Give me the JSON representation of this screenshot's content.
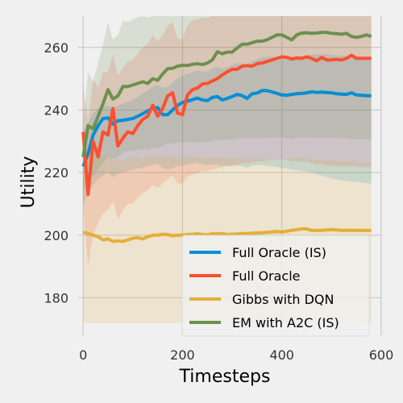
{
  "chart_data": {
    "type": "line",
    "title": "",
    "xlabel": "Timesteps",
    "ylabel": "Utility",
    "xlim": [
      -10,
      600
    ],
    "ylim": [
      168,
      270
    ],
    "xticks": [
      0,
      200,
      400,
      600
    ],
    "yticks": [
      180,
      200,
      220,
      240,
      260
    ],
    "grid": true,
    "legend_position": "lower-right",
    "x": [
      0,
      10,
      20,
      30,
      40,
      50,
      60,
      70,
      80,
      90,
      100,
      110,
      120,
      130,
      140,
      150,
      160,
      170,
      180,
      190,
      200,
      210,
      220,
      230,
      240,
      250,
      260,
      270,
      280,
      290,
      300,
      310,
      320,
      330,
      340,
      350,
      360,
      370,
      380,
      390,
      400,
      410,
      420,
      430,
      440,
      450,
      460,
      470,
      480,
      490,
      500,
      510,
      520,
      530,
      540,
      550,
      560,
      570,
      580
    ],
    "series": [
      {
        "name": "Full Oracle (IS)",
        "color": "#008fd5",
        "values": [
          222,
          226,
          232,
          235,
          237.3,
          237.5,
          235.5,
          236.6,
          236.7,
          237,
          237.3,
          238,
          238.8,
          239.7,
          240.5,
          240.8,
          238.5,
          238.5,
          240,
          241.5,
          242.4,
          242.8,
          243.3,
          243.8,
          243.2,
          243,
          244,
          244.3,
          243.2,
          243.7,
          244.3,
          245,
          244.6,
          243.7,
          245.2,
          245.4,
          246.2,
          246.2,
          245.8,
          245.3,
          244.8,
          244.7,
          245,
          245.2,
          245.3,
          245.5,
          245.8,
          245.6,
          245.7,
          245.6,
          245.5,
          245.2,
          245.1,
          245,
          245.5,
          244.8,
          244.7,
          244.6,
          244.5
        ],
        "lower": [
          210,
          213,
          216,
          218,
          219,
          220,
          218.5,
          219.5,
          220,
          220.5,
          221,
          221.3,
          221.5,
          222,
          222.5,
          222.8,
          221.5,
          221,
          221.5,
          222,
          222.2,
          222.5,
          222.8,
          223,
          222.6,
          222.3,
          222.5,
          222.6,
          222,
          222.2,
          222,
          222.3,
          222.1,
          221.6,
          222.3,
          222.4,
          222.4,
          222.2,
          222,
          221.8,
          221.5,
          221.3,
          221,
          220.8,
          220.5,
          220.3,
          220,
          219.5,
          219,
          218.6,
          218.2,
          217.8,
          217.5,
          217.3,
          217.2,
          217,
          216.8,
          216.6,
          216.5
        ],
        "upper": [
          233,
          236,
          239,
          240.5,
          241.3,
          241.5,
          240.6,
          241.4,
          242,
          242.6,
          243.3,
          244.2,
          245.2,
          246.3,
          247.4,
          248,
          247.1,
          247.3,
          248.7,
          250.1,
          251,
          251.5,
          252.1,
          252.6,
          252.3,
          252.3,
          253.3,
          253.8,
          253.2,
          253.7,
          254.3,
          255,
          254.9,
          254.4,
          255.7,
          256.1,
          256.9,
          257.1,
          257,
          256.8,
          256.5,
          256.5,
          256.8,
          257,
          257.2,
          257.5,
          257.8,
          257.7,
          257.8,
          257.8,
          257.7,
          257.5,
          257.4,
          257.3,
          257.6,
          257.2,
          257.1,
          257,
          256.9
        ]
      },
      {
        "name": "Full Oracle",
        "color": "#fc4f30",
        "values": [
          233,
          213,
          230,
          225,
          233,
          232,
          240.5,
          228.5,
          231,
          233,
          232.5,
          235,
          237,
          238,
          241.5,
          238,
          240.5,
          244.5,
          245.5,
          239,
          238.5,
          244.8,
          246.5,
          247,
          248.3,
          248.5,
          249.3,
          250,
          251.2,
          252.2,
          253,
          253,
          254,
          254.2,
          254,
          254.8,
          255,
          255.5,
          256,
          256.5,
          257,
          256.8,
          256.3,
          256.6,
          256.5,
          257,
          256.5,
          255.7,
          256.8,
          256,
          256,
          256.2,
          256,
          256.5,
          257.5,
          256.5,
          256.5,
          256.5,
          256.5
        ],
        "lower": [
          210,
          190,
          200,
          204,
          207,
          208,
          211,
          205,
          208,
          210,
          210,
          212,
          213.5,
          214.5,
          216,
          215,
          216.5,
          218,
          219,
          216.5,
          216.5,
          218.7,
          219.5,
          219.8,
          220.4,
          220.5,
          221,
          221.3,
          221.8,
          222.2,
          222.5,
          222.5,
          223,
          223.1,
          223.2,
          223.5,
          223.7,
          224,
          224.1,
          224.2,
          224.2,
          224,
          223.6,
          223.6,
          223.4,
          223.5,
          223,
          222.4,
          222.8,
          222.3,
          222.2,
          222.2,
          222,
          222,
          222.3,
          222,
          221.8,
          221.8,
          221.8
        ],
        "upper": [
          248,
          236,
          250,
          247,
          252,
          252,
          258,
          251,
          253.5,
          255.5,
          256,
          258,
          260,
          261,
          264,
          262,
          264,
          267,
          268,
          263,
          262.5,
          267,
          268.5,
          269,
          269.5,
          269.5,
          270,
          270,
          270,
          270,
          270,
          270,
          270,
          270,
          270,
          270,
          270,
          270,
          270,
          270,
          270,
          270,
          270,
          270,
          270,
          270,
          270,
          270,
          270,
          270,
          270,
          270,
          270,
          270,
          270,
          270,
          270,
          270,
          270
        ]
      },
      {
        "name": "Gibbs with DQN",
        "color": "#e5ae38",
        "values": [
          201,
          200.5,
          200,
          199.5,
          198.5,
          198.8,
          198,
          198.2,
          198,
          198.5,
          199,
          199.2,
          198.8,
          199.5,
          200,
          200,
          200.3,
          200.2,
          199.8,
          200,
          200,
          200.2,
          200.3,
          200.5,
          200.2,
          200.1,
          200.5,
          200.4,
          200.5,
          200.2,
          200.3,
          200.4,
          200.5,
          200.5,
          200.6,
          200.7,
          200.8,
          200.9,
          201,
          201.2,
          201,
          201.3,
          201.5,
          201.8,
          202,
          202,
          201.5,
          201.5,
          201.5,
          201.7,
          201.8,
          201.7,
          201.5,
          201.5,
          201.6,
          201.5,
          201.5,
          201.5,
          201.5
        ],
        "lower": [
          172,
          172,
          172,
          172,
          172,
          172,
          172,
          172,
          172,
          172,
          172,
          172,
          172,
          172,
          172,
          172,
          172,
          172,
          172,
          172,
          172,
          172,
          172,
          172,
          172,
          172,
          172,
          172,
          172,
          172,
          172,
          172,
          172,
          172,
          172,
          172,
          172,
          172,
          172,
          172,
          172,
          172,
          172,
          172,
          172,
          172,
          172,
          172,
          172,
          172,
          172,
          172,
          172,
          172,
          172,
          172,
          172,
          172,
          172
        ],
        "upper": [
          229,
          229,
          228,
          227,
          225,
          225.5,
          224.5,
          224.5,
          224,
          224.5,
          225,
          225,
          224.5,
          225,
          225.3,
          225.2,
          225.4,
          225.3,
          224.8,
          225,
          224.8,
          225,
          225,
          225.2,
          224.8,
          224.6,
          225,
          224.8,
          224.8,
          224.5,
          224.5,
          224.5,
          224.5,
          224.3,
          224.4,
          224.4,
          224.4,
          224.4,
          224.4,
          224.5,
          224.2,
          224.4,
          224.5,
          224.7,
          224.8,
          224.7,
          224.1,
          224,
          223.9,
          224,
          224,
          223.8,
          223.6,
          223.5,
          223.5,
          223.3,
          223.2,
          223.1,
          223
        ]
      },
      {
        "name": "EM with A2C (IS)",
        "color": "#6d904f",
        "values": [
          225,
          235,
          234,
          238,
          242,
          246.5,
          243.5,
          244.5,
          247.5,
          247.5,
          248,
          248.5,
          249,
          248.5,
          250,
          249.5,
          251.5,
          253.2,
          253.3,
          254,
          254.3,
          254.2,
          254.6,
          254.8,
          254.5,
          255,
          256,
          258.6,
          258,
          258.5,
          258.5,
          259.8,
          261,
          261,
          261.5,
          262,
          262,
          262.4,
          263.2,
          264,
          264,
          263.2,
          262.4,
          264,
          264.6,
          264.7,
          264.5,
          264.6,
          264.8,
          264.8,
          264.5,
          264.4,
          264.2,
          264.5,
          263.5,
          263.2,
          263.5,
          264,
          263.5
        ],
        "lower": [
          214,
          218,
          219,
          221,
          223,
          225,
          224.5,
          225,
          226.5,
          226.8,
          227,
          227.3,
          227.6,
          227.4,
          228,
          227.8,
          228.6,
          229.3,
          229.3,
          229.6,
          229.7,
          229.6,
          229.7,
          229.8,
          229.6,
          229.8,
          230,
          230.7,
          230.4,
          230.5,
          230.5,
          230.8,
          231,
          230.9,
          230.9,
          231,
          230.9,
          231,
          231.2,
          231.3,
          231.3,
          231,
          230.8,
          231.2,
          231.3,
          231.3,
          231.2,
          231.2,
          231.2,
          231.2,
          231.1,
          231,
          230.9,
          231,
          230.7,
          230.6,
          230.6,
          230.7,
          230.6
        ],
        "upper": [
          236,
          252,
          249,
          255,
          261,
          268,
          262.5,
          264,
          268.5,
          268.2,
          269,
          269.7,
          270,
          269.6,
          270,
          270,
          270,
          270,
          270,
          270,
          270,
          270,
          270,
          270,
          270,
          270,
          270,
          270,
          270,
          270,
          270,
          270,
          270,
          270,
          270,
          270,
          270,
          270,
          270,
          270,
          270,
          270,
          270,
          270,
          270,
          270,
          270,
          270,
          270,
          270,
          270,
          270,
          270,
          270,
          270,
          270,
          270,
          270,
          270
        ]
      }
    ]
  }
}
